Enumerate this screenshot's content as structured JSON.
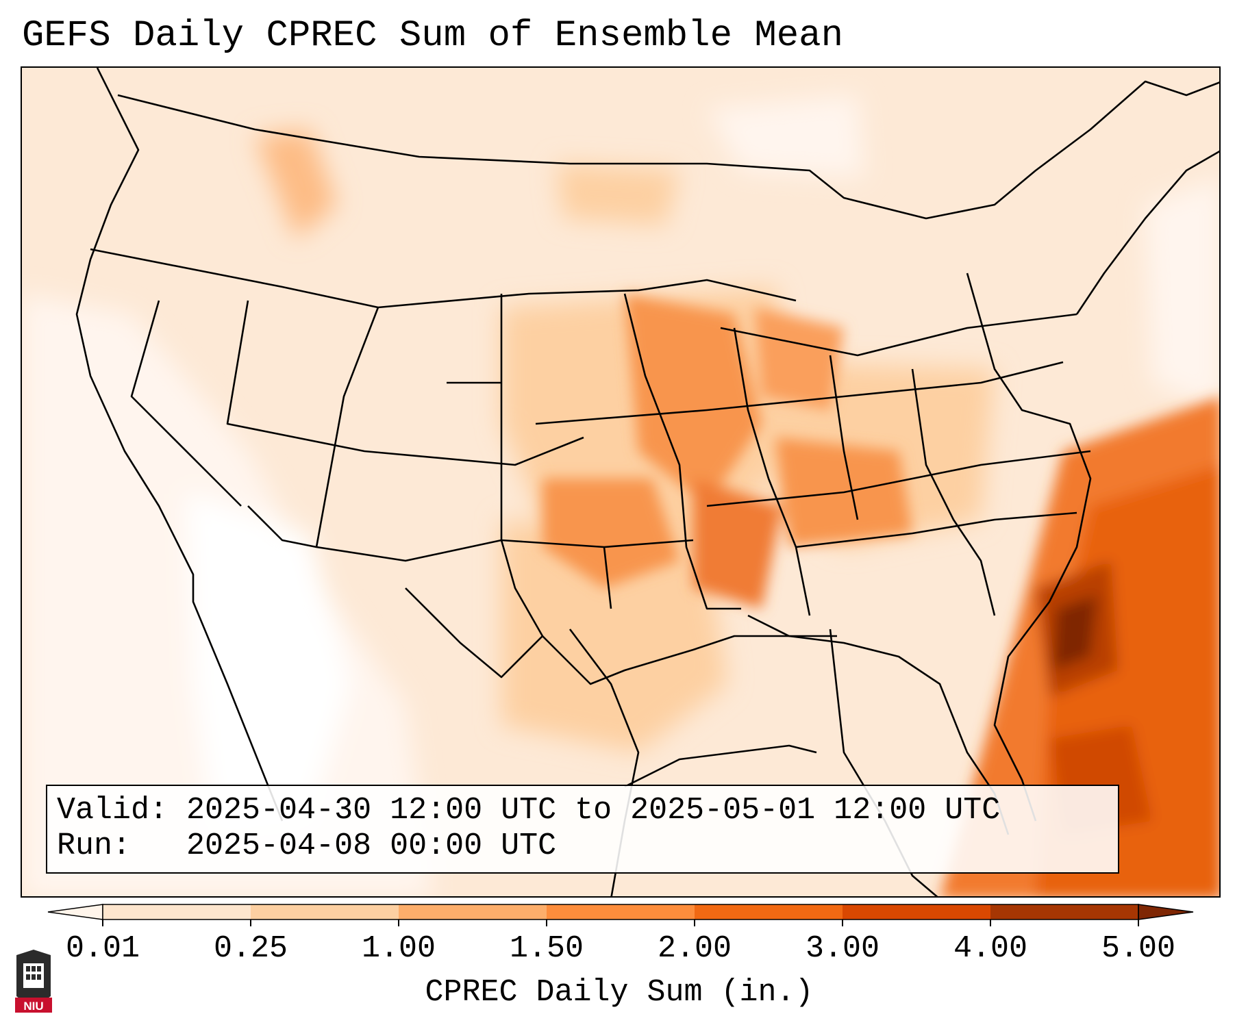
{
  "title": "GEFS Daily CPREC Sum of Ensemble Mean",
  "info": {
    "valid_line": "Valid: 2025-04-30 12:00 UTC to 2025-05-01 12:00 UTC",
    "run_line": "Run:   2025-04-08 00:00 UTC"
  },
  "colorbar": {
    "label": "CPREC Daily Sum (in.)",
    "ticks": [
      "0.01",
      "0.25",
      "1.00",
      "1.50",
      "2.00",
      "3.00",
      "4.00",
      "5.00"
    ],
    "colors": [
      "#fff5eb",
      "#fee6ce",
      "#fdd0a2",
      "#fdae6b",
      "#fd8d3c",
      "#f16913",
      "#d94801",
      "#a63603",
      "#7f2704"
    ]
  },
  "logo": {
    "text": "NIU"
  },
  "map": {
    "region": "Continental United States",
    "features": [
      "state-boundaries",
      "coastlines",
      "precipitation-field"
    ]
  }
}
